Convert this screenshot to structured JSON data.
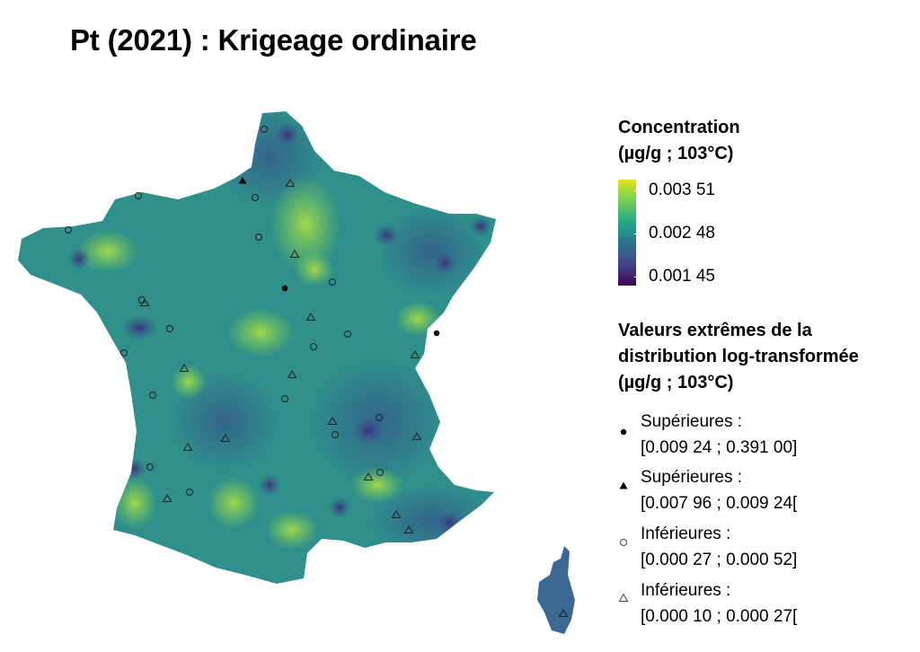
{
  "title": "Pt (2021) : Krigeage ordinaire",
  "legend_concentration": {
    "title_line1": "Concentration",
    "title_line2": "(µg/g ; 103°C)",
    "ticks": [
      "0.003 51",
      "0.002 48",
      "0.001 45"
    ],
    "colors": [
      "#e6e41a",
      "#22a884",
      "#440154"
    ]
  },
  "legend_extremes": {
    "title_line1": "Valeurs extrêmes de la",
    "title_line2": "distribution log-transformée",
    "title_line3": "(µg/g ; 103°C)",
    "items": [
      {
        "symbol": "filled-circle",
        "line1": "Supérieures :",
        "line2": "[0.009 24 ; 0.391 00]"
      },
      {
        "symbol": "filled-triangle",
        "line1": "Supérieures :",
        "line2": "[0.007 96 ; 0.009 24["
      },
      {
        "symbol": "open-circle",
        "line1": "Inférieures :",
        "line2": "[0.000 27 ; 0.000 52]"
      },
      {
        "symbol": "open-triangle",
        "line1": "Inférieures :",
        "line2": "[0.000 10 ; 0.000 27["
      }
    ]
  },
  "map": {
    "region": "France",
    "fill_color": "#2f8f8b",
    "hotspot_color": "#8fcf52",
    "lowspot_color": "#3b4a8a"
  }
}
